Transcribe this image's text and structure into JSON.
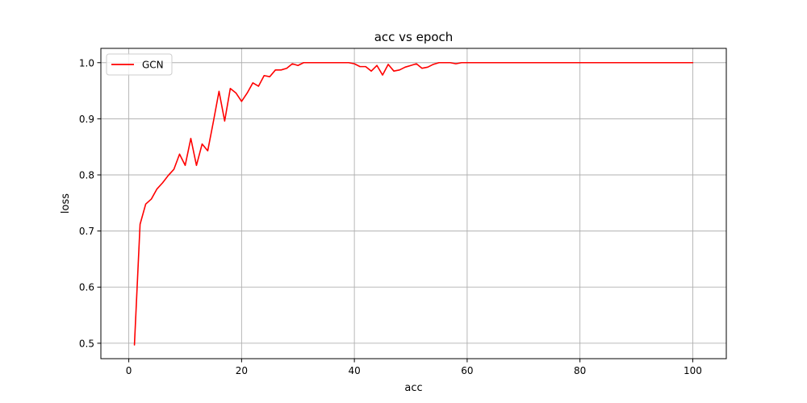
{
  "chart_data": {
    "type": "line",
    "title": "acc vs epoch",
    "xlabel": "acc",
    "ylabel": "loss",
    "xlim": [
      -4.95,
      105.95
    ],
    "ylim": [
      0.4725,
      1.0255
    ],
    "xticks": [
      0,
      20,
      40,
      60,
      80,
      100
    ],
    "yticks": [
      0.5,
      0.6,
      0.7,
      0.8,
      0.9,
      1.0
    ],
    "xtick_labels": [
      "0",
      "20",
      "40",
      "60",
      "80",
      "100"
    ],
    "ytick_labels": [
      "0.5",
      "0.6",
      "0.7",
      "0.8",
      "0.9",
      "1.0"
    ],
    "grid": true,
    "legend": {
      "position": "top-left"
    },
    "series": [
      {
        "name": "GCN",
        "color": "#ff0000",
        "x": [
          1,
          2,
          3,
          4,
          5,
          6,
          7,
          8,
          9,
          10,
          11,
          12,
          13,
          14,
          15,
          16,
          17,
          18,
          19,
          20,
          21,
          22,
          23,
          24,
          25,
          26,
          27,
          28,
          29,
          30,
          31,
          32,
          33,
          34,
          35,
          36,
          37,
          38,
          39,
          40,
          41,
          42,
          43,
          44,
          45,
          46,
          47,
          48,
          49,
          50,
          51,
          52,
          53,
          54,
          55,
          56,
          57,
          58,
          59,
          60,
          61,
          62,
          63,
          64,
          65,
          66,
          67,
          68,
          69,
          70,
          71,
          72,
          73,
          74,
          75,
          76,
          77,
          78,
          79,
          80,
          81,
          82,
          83,
          84,
          85,
          86,
          87,
          88,
          89,
          90,
          91,
          92,
          93,
          94,
          95,
          96,
          97,
          98,
          99,
          100
        ],
        "y": [
          0.497,
          0.712,
          0.748,
          0.757,
          0.775,
          0.786,
          0.799,
          0.81,
          0.837,
          0.817,
          0.865,
          0.817,
          0.855,
          0.843,
          0.895,
          0.949,
          0.896,
          0.954,
          0.946,
          0.931,
          0.946,
          0.964,
          0.958,
          0.977,
          0.975,
          0.987,
          0.987,
          0.99,
          0.998,
          0.995,
          1.0,
          1.0,
          1.0,
          1.0,
          1.0,
          1.0,
          1.0,
          1.0,
          1.0,
          0.998,
          0.993,
          0.993,
          0.985,
          0.995,
          0.978,
          0.997,
          0.985,
          0.987,
          0.992,
          0.995,
          0.998,
          0.99,
          0.992,
          0.997,
          1.0,
          1.0,
          1.0,
          0.998,
          1.0,
          1.0,
          1.0,
          1.0,
          1.0,
          1.0,
          1.0,
          1.0,
          1.0,
          1.0,
          1.0,
          1.0,
          1.0,
          1.0,
          1.0,
          1.0,
          1.0,
          1.0,
          1.0,
          1.0,
          1.0,
          1.0,
          1.0,
          1.0,
          1.0,
          1.0,
          1.0,
          1.0,
          1.0,
          1.0,
          1.0,
          1.0,
          1.0,
          1.0,
          1.0,
          1.0,
          1.0,
          1.0,
          1.0,
          1.0,
          1.0,
          1.0
        ]
      }
    ]
  }
}
